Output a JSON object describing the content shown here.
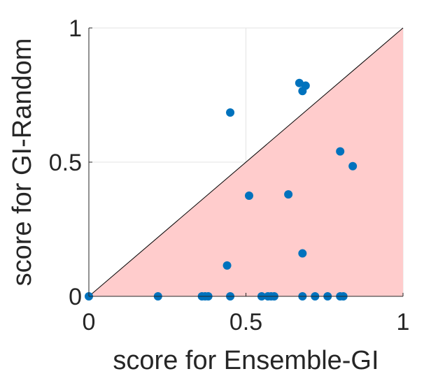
{
  "chart_data": {
    "type": "scatter",
    "title": "",
    "xlabel": "score for Ensemble-GI",
    "ylabel": "score for GI-Random",
    "xlim": [
      0,
      1
    ],
    "ylim": [
      0,
      1
    ],
    "xticks": [
      0,
      0.5,
      1
    ],
    "yticks": [
      0,
      0.5,
      1
    ],
    "xtick_labels": [
      "0",
      "0.5",
      "1"
    ],
    "ytick_labels": [
      "0",
      "0.5",
      "1"
    ],
    "grid": true,
    "reference_line": {
      "type": "diagonal",
      "from": [
        0,
        0
      ],
      "to": [
        1,
        1
      ]
    },
    "shaded_region": {
      "vertices": [
        [
          0,
          0
        ],
        [
          1,
          0
        ],
        [
          1,
          1
        ]
      ],
      "color": "#ffcccc"
    },
    "marker_color": "#0072bd",
    "series": [
      {
        "points": [
          [
            0.0,
            0.0
          ],
          [
            0.22,
            0.0
          ],
          [
            0.36,
            0.0
          ],
          [
            0.37,
            0.0
          ],
          [
            0.38,
            0.0
          ],
          [
            0.45,
            0.0
          ],
          [
            0.55,
            0.0
          ],
          [
            0.57,
            0.0
          ],
          [
            0.58,
            0.0
          ],
          [
            0.59,
            0.0
          ],
          [
            0.68,
            0.0
          ],
          [
            0.72,
            0.0
          ],
          [
            0.76,
            0.0
          ],
          [
            0.8,
            0.0
          ],
          [
            0.81,
            0.0
          ],
          [
            0.44,
            0.115
          ],
          [
            0.68,
            0.16
          ],
          [
            0.51,
            0.375
          ],
          [
            0.635,
            0.38
          ],
          [
            0.84,
            0.485
          ],
          [
            0.8,
            0.54
          ],
          [
            0.45,
            0.685
          ],
          [
            0.68,
            0.765
          ],
          [
            0.69,
            0.785
          ],
          [
            0.67,
            0.795
          ]
        ]
      }
    ]
  }
}
